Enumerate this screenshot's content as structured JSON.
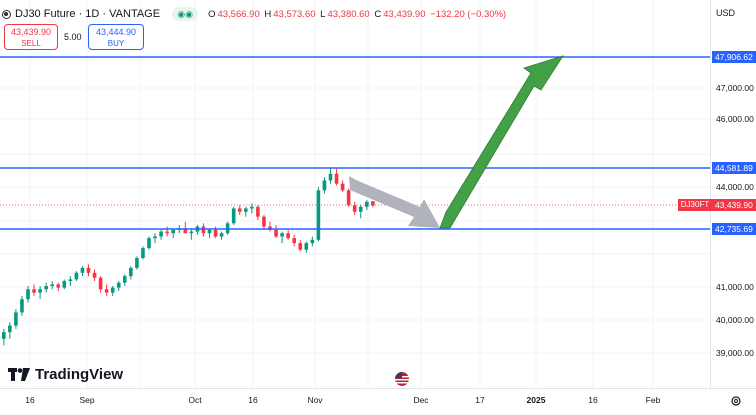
{
  "header": {
    "title": "DJ30 Future · 1D · VANTAGE",
    "toggle_icon": "eye-toggle-icon",
    "ohlc": {
      "o_label": "O",
      "o": "43,566.90",
      "h_label": "H",
      "h": "43,573.60",
      "l_label": "L",
      "l": "43,380.60",
      "c_label": "C",
      "c": "43,439.90",
      "change": "−132.20 (−0.30%)"
    }
  },
  "trade": {
    "sell_price": "43,439.90",
    "sell_label": "SELL",
    "spread": "5.00",
    "buy_price": "43,444.90",
    "buy_label": "BUY"
  },
  "price_axis": {
    "currency": "USD",
    "ticks": [
      "47,000.00",
      "46,000.00",
      "44,000.00",
      "41,000.00",
      "40,000.00",
      "39,000.00"
    ],
    "level_tags": [
      "47,906.62",
      "44,581.89",
      "42,735.69"
    ],
    "last_price": "43,439.90",
    "symbol_tag": "DJ30FT"
  },
  "time_axis": {
    "ticks": [
      "16",
      "Sep",
      "Oct",
      "16",
      "Nov",
      "Dec",
      "17",
      "2025",
      "16",
      "Feb"
    ]
  },
  "logo": {
    "text": "TradingView"
  },
  "colors": {
    "up": "#089981",
    "down": "#f23645",
    "line": "#2962ff",
    "arrow_up": "#43a047",
    "arrow_down": "#a9abb5"
  },
  "chart_data": {
    "type": "candlestick",
    "ylim": [
      38600,
      48500
    ],
    "horizontal_lines": [
      47906.62,
      44581.89,
      42735.69
    ],
    "last_price": 43439.9,
    "candles": [
      [
        39400,
        39700,
        39200,
        39600
      ],
      [
        39600,
        39900,
        39400,
        39800
      ],
      [
        39800,
        40300,
        39700,
        40200
      ],
      [
        40200,
        40700,
        40100,
        40600
      ],
      [
        40600,
        41000,
        40500,
        40900
      ],
      [
        40900,
        41050,
        40700,
        40800
      ],
      [
        40800,
        41000,
        40600,
        40900
      ],
      [
        40900,
        41100,
        40800,
        41000
      ],
      [
        41000,
        41150,
        40900,
        41050
      ],
      [
        41050,
        41100,
        40850,
        40950
      ],
      [
        40950,
        41200,
        40900,
        41150
      ],
      [
        41150,
        41300,
        41000,
        41200
      ],
      [
        41200,
        41450,
        41150,
        41400
      ],
      [
        41400,
        41600,
        41300,
        41550
      ],
      [
        41550,
        41650,
        41300,
        41400
      ],
      [
        41400,
        41500,
        41150,
        41250
      ],
      [
        41250,
        41300,
        40800,
        40900
      ],
      [
        40900,
        41050,
        40700,
        40800
      ],
      [
        40800,
        41000,
        40700,
        40950
      ],
      [
        40950,
        41150,
        40850,
        41100
      ],
      [
        41100,
        41350,
        41000,
        41300
      ],
      [
        41300,
        41600,
        41200,
        41550
      ],
      [
        41550,
        41900,
        41500,
        41850
      ],
      [
        41850,
        42200,
        41800,
        42150
      ],
      [
        42150,
        42500,
        42100,
        42450
      ],
      [
        42450,
        42600,
        42300,
        42500
      ],
      [
        42500,
        42700,
        42400,
        42650
      ],
      [
        42650,
        42800,
        42500,
        42600
      ],
      [
        42600,
        42750,
        42450,
        42700
      ],
      [
        42700,
        42850,
        42600,
        42750
      ],
      [
        42750,
        42950,
        42650,
        42600
      ],
      [
        42600,
        42750,
        42400,
        42650
      ],
      [
        42650,
        42850,
        42550,
        42800
      ],
      [
        42800,
        42900,
        42500,
        42600
      ],
      [
        42600,
        42750,
        42450,
        42700
      ],
      [
        42700,
        42800,
        42450,
        42500
      ],
      [
        42500,
        42650,
        42400,
        42600
      ],
      [
        42600,
        42950,
        42550,
        42900
      ],
      [
        42900,
        43400,
        42850,
        43350
      ],
      [
        43350,
        43450,
        43150,
        43250
      ],
      [
        43250,
        43400,
        43100,
        43350
      ],
      [
        43350,
        43500,
        43200,
        43400
      ],
      [
        43400,
        43450,
        43000,
        43100
      ],
      [
        43100,
        43150,
        42700,
        42800
      ],
      [
        42800,
        42950,
        42650,
        42700
      ],
      [
        42700,
        42850,
        42450,
        42500
      ],
      [
        42500,
        42650,
        42300,
        42600
      ],
      [
        42600,
        42700,
        42400,
        42450
      ],
      [
        42450,
        42550,
        42200,
        42300
      ],
      [
        42300,
        42400,
        42050,
        42100
      ],
      [
        42100,
        42350,
        42000,
        42300
      ],
      [
        42300,
        42500,
        42200,
        42400
      ],
      [
        42400,
        44000,
        42350,
        43900
      ],
      [
        43900,
        44300,
        43800,
        44200
      ],
      [
        44200,
        44600,
        44100,
        44400
      ],
      [
        44400,
        44550,
        44050,
        44100
      ],
      [
        44100,
        44200,
        43850,
        43900
      ],
      [
        43900,
        43950,
        43400,
        43450
      ],
      [
        43450,
        43550,
        43150,
        43250
      ],
      [
        43250,
        43450,
        43050,
        43400
      ],
      [
        43400,
        43600,
        43300,
        43550
      ],
      [
        43566.9,
        43573.6,
        43380.6,
        43439.9
      ]
    ]
  }
}
